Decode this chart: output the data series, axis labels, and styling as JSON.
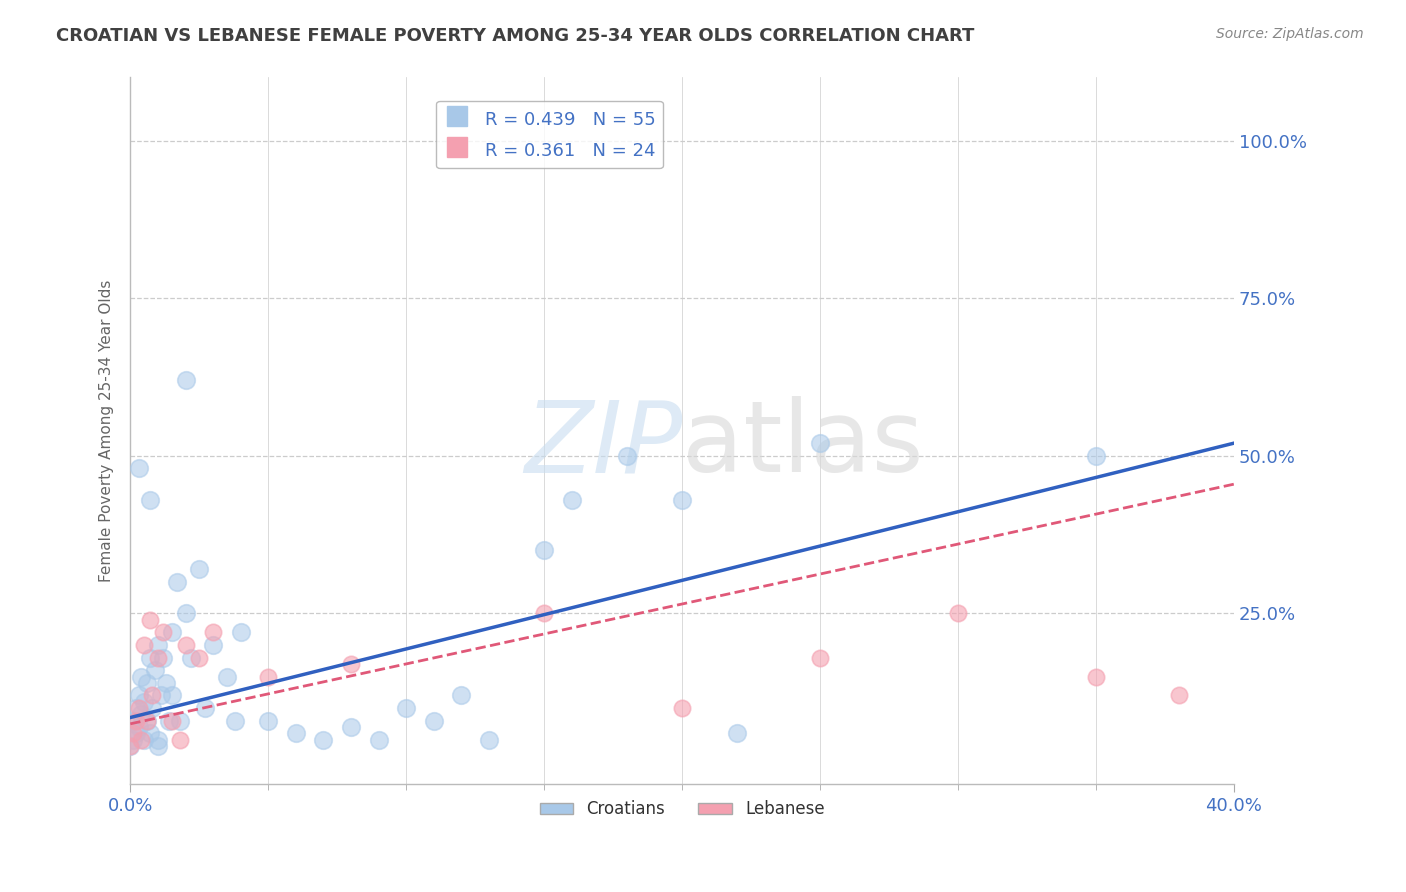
{
  "title": "CROATIAN VS LEBANESE FEMALE POVERTY AMONG 25-34 YEAR OLDS CORRELATION CHART",
  "source": "Source: ZipAtlas.com",
  "ylabel": "Female Poverty Among 25-34 Year Olds",
  "xlim": [
    0.0,
    0.4
  ],
  "ylim": [
    -0.02,
    1.1
  ],
  "plot_ylim": [
    0.0,
    1.1
  ],
  "croatian_R": 0.439,
  "croatian_N": 55,
  "lebanese_R": 0.361,
  "lebanese_N": 24,
  "blue_scatter_color": "#a8c8e8",
  "pink_scatter_color": "#f4a0b0",
  "blue_line_color": "#3060c0",
  "pink_line_color": "#e05878",
  "axis_color": "#4472c4",
  "title_color": "#404040",
  "source_color": "#888888",
  "grid_color": "#cccccc",
  "background_color": "#ffffff",
  "cro_line_x0": 0.0,
  "cro_line_y0": 0.085,
  "cro_line_x1": 0.4,
  "cro_line_y1": 0.52,
  "leb_line_x0": 0.0,
  "leb_line_y0": 0.075,
  "leb_line_x1": 0.4,
  "leb_line_y1": 0.455,
  "croatian_x": [
    0.0,
    0.001,
    0.001,
    0.002,
    0.002,
    0.003,
    0.003,
    0.004,
    0.004,
    0.005,
    0.005,
    0.006,
    0.006,
    0.007,
    0.007,
    0.008,
    0.009,
    0.01,
    0.01,
    0.011,
    0.012,
    0.013,
    0.014,
    0.015,
    0.015,
    0.017,
    0.018,
    0.02,
    0.022,
    0.025,
    0.027,
    0.03,
    0.035,
    0.038,
    0.04,
    0.05,
    0.06,
    0.07,
    0.08,
    0.09,
    0.1,
    0.11,
    0.12,
    0.13,
    0.15,
    0.16,
    0.18,
    0.2,
    0.22,
    0.25,
    0.007,
    0.003,
    0.01,
    0.35,
    0.02
  ],
  "croatian_y": [
    0.04,
    0.05,
    0.08,
    0.06,
    0.1,
    0.07,
    0.12,
    0.09,
    0.15,
    0.05,
    0.11,
    0.08,
    0.14,
    0.06,
    0.18,
    0.1,
    0.16,
    0.05,
    0.2,
    0.12,
    0.18,
    0.14,
    0.08,
    0.22,
    0.12,
    0.3,
    0.08,
    0.25,
    0.18,
    0.32,
    0.1,
    0.2,
    0.15,
    0.08,
    0.22,
    0.08,
    0.06,
    0.05,
    0.07,
    0.05,
    0.1,
    0.08,
    0.12,
    0.05,
    0.35,
    0.43,
    0.5,
    0.43,
    0.06,
    0.52,
    0.43,
    0.48,
    0.04,
    0.5,
    0.62
  ],
  "lebanese_x": [
    0.0,
    0.001,
    0.002,
    0.003,
    0.004,
    0.005,
    0.006,
    0.007,
    0.008,
    0.01,
    0.012,
    0.015,
    0.018,
    0.02,
    0.025,
    0.03,
    0.05,
    0.08,
    0.15,
    0.2,
    0.25,
    0.3,
    0.35,
    0.38
  ],
  "lebanese_y": [
    0.04,
    0.06,
    0.08,
    0.1,
    0.05,
    0.2,
    0.08,
    0.24,
    0.12,
    0.18,
    0.22,
    0.08,
    0.05,
    0.2,
    0.18,
    0.22,
    0.15,
    0.17,
    0.25,
    0.1,
    0.18,
    0.25,
    0.15,
    0.12
  ]
}
